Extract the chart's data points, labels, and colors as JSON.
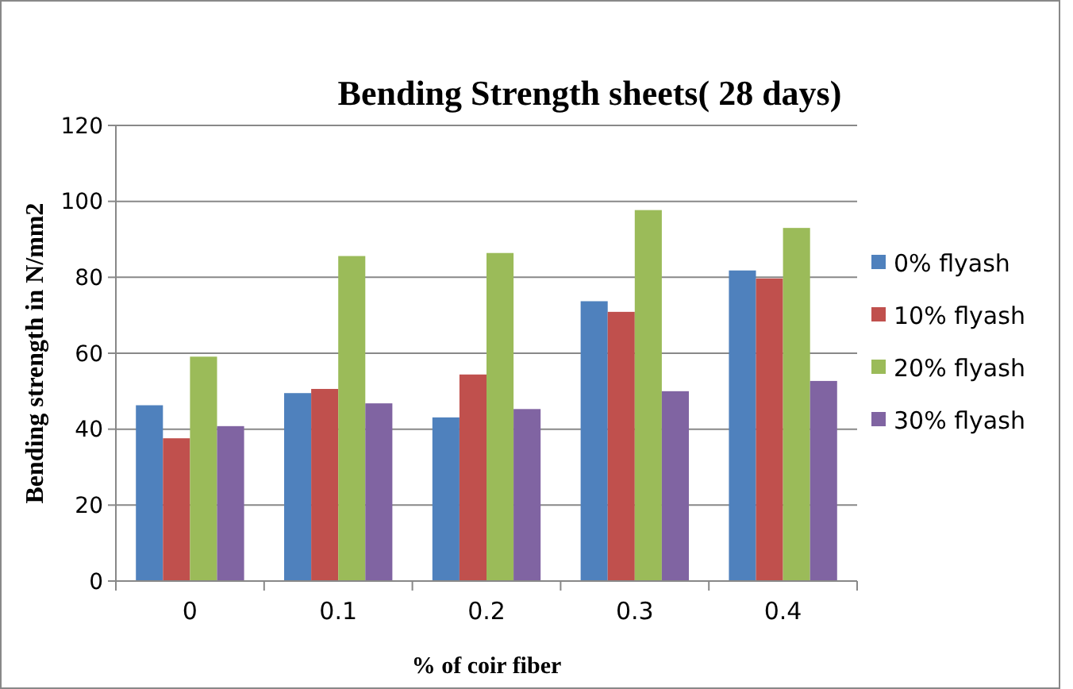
{
  "chart_data": {
    "type": "bar",
    "title": "Bending Strength sheets( 28 days)",
    "xlabel": "% of coir fiber",
    "ylabel": "Bending strength in N/mm2",
    "categories": [
      "0",
      "0.1",
      "0.2",
      "0.3",
      "0.4"
    ],
    "series": [
      {
        "name": "0% flyash",
        "color": "#4f81bd",
        "values": [
          46.3,
          49.5,
          43.1,
          73.7,
          81.8
        ]
      },
      {
        "name": "10% flyash",
        "color": "#c0504d",
        "values": [
          37.6,
          50.6,
          54.4,
          70.9,
          79.7
        ]
      },
      {
        "name": "20% flyash",
        "color": "#9bbb59",
        "values": [
          59.1,
          85.6,
          86.4,
          97.7,
          93.0
        ]
      },
      {
        "name": "30% flyash",
        "color": "#8064a2",
        "values": [
          40.8,
          46.8,
          45.3,
          50.0,
          52.7
        ]
      }
    ],
    "ylim": [
      0,
      120
    ],
    "yticks": [
      0,
      20,
      40,
      60,
      80,
      100,
      120
    ],
    "grid": "y",
    "legend": "right"
  }
}
